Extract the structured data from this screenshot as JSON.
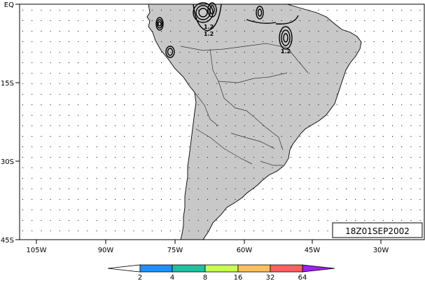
{
  "map": {
    "lat_labels": [
      "EQ",
      "15S",
      "30S",
      "45S"
    ],
    "lon_labels": [
      "105W",
      "90W",
      "75W",
      "60W",
      "45W",
      "30W"
    ],
    "date_label": "18Z01SEP2002",
    "contour_labels": [
      "1.2",
      "1.2",
      "1.2"
    ],
    "land_color": "#c8c8c8",
    "ocean_color": "#ffffff",
    "extent": {
      "lon_min": -112,
      "lon_max": -23,
      "lat_min": -45,
      "lat_max": 0
    }
  },
  "colorbar": {
    "labels": [
      "2",
      "4",
      "8",
      "16",
      "32",
      "64"
    ],
    "colors": [
      "#ffffff",
      "#1e90ff",
      "#20c0a0",
      "#c8ff50",
      "#ffc060",
      "#ff6060",
      "#a020f0"
    ]
  }
}
